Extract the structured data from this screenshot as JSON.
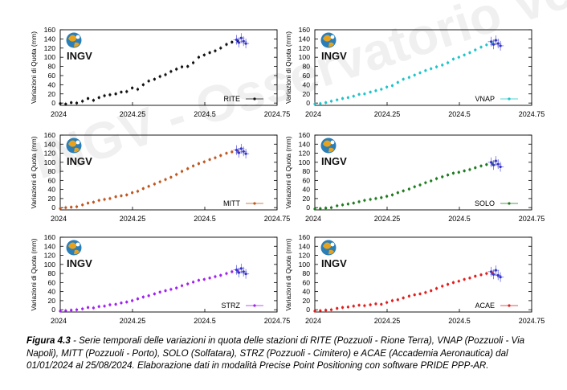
{
  "figure": {
    "caption_label": "Figura 4.3",
    "caption_text": " - Serie temporali delle variazioni in quota delle stazioni di RITE (Pozzuoli - Rione Terra), VNAP (Pozzuoli - Via Napoli), MITT (Pozzuoli - Porto), SOLO (Solfatara), STRZ (Pozzuoli - Cimitero) e ACAE (Accademia Aeronautica) dal 01/01/2024 al 25/08/2024. Elaborazione dati in modalità Precise Point Positioning con software PRIDE PPP-AR.",
    "logo_text": "INGV",
    "watermark_text": "INGV - Osservatorio Vesuviano"
  },
  "chart_data": [
    {
      "type": "scatter",
      "station": "RITE",
      "color": "#111111",
      "ylabel": "Variazioni di Quota (mm)",
      "xlim": [
        2024,
        2024.75
      ],
      "ylim": [
        -5,
        160
      ],
      "xticks": [
        2024,
        2024.25,
        2024.5,
        2024.75
      ],
      "xtick_labels": [
        "2024",
        "2024.25",
        "2024.5",
        "2024.75"
      ],
      "yticks": [
        0,
        20,
        40,
        60,
        80,
        100,
        120,
        140,
        160
      ],
      "legend": "RITE",
      "legend_position": "bottom-right",
      "x": [
        2024.0,
        2024.019,
        2024.038,
        2024.057,
        2024.077,
        2024.096,
        2024.115,
        2024.134,
        2024.153,
        2024.172,
        2024.192,
        2024.211,
        2024.23,
        2024.249,
        2024.268,
        2024.287,
        2024.306,
        2024.326,
        2024.345,
        2024.364,
        2024.383,
        2024.402,
        2024.421,
        2024.441,
        2024.46,
        2024.479,
        2024.498,
        2024.517,
        2024.536,
        2024.555,
        2024.575,
        2024.594,
        2024.613
      ],
      "y": [
        -1,
        -2,
        1,
        0,
        4,
        10,
        6,
        12,
        16,
        18,
        20,
        24,
        25,
        33,
        30,
        40,
        48,
        52,
        58,
        62,
        69,
        74,
        79,
        80,
        88,
        100,
        105,
        110,
        114,
        120,
        128,
        133,
        136
      ],
      "recent_x": [
        2024.61,
        2024.618,
        2024.626,
        2024.634,
        2024.642
      ],
      "recent_y": [
        138,
        132,
        142,
        135,
        130
      ]
    },
    {
      "type": "scatter",
      "station": "VNAP",
      "color": "#1fc4c9",
      "ylabel": "Variazioni di Quota (mm)",
      "xlim": [
        2024,
        2024.75
      ],
      "ylim": [
        -5,
        160
      ],
      "xticks": [
        2024,
        2024.25,
        2024.5,
        2024.75
      ],
      "xtick_labels": [
        "2024",
        "2024.25",
        "2024.5",
        "2024.75"
      ],
      "yticks": [
        0,
        20,
        40,
        60,
        80,
        100,
        120,
        140,
        160
      ],
      "legend": "VNAP",
      "legend_position": "bottom-right",
      "x": [
        2024.0,
        2024.019,
        2024.038,
        2024.057,
        2024.077,
        2024.096,
        2024.115,
        2024.134,
        2024.153,
        2024.172,
        2024.192,
        2024.211,
        2024.23,
        2024.249,
        2024.268,
        2024.287,
        2024.306,
        2024.326,
        2024.345,
        2024.364,
        2024.383,
        2024.402,
        2024.421,
        2024.441,
        2024.46,
        2024.479,
        2024.498,
        2024.517,
        2024.536,
        2024.555,
        2024.575,
        2024.594,
        2024.613
      ],
      "y": [
        -2,
        -1,
        1,
        4,
        7,
        10,
        12,
        15,
        19,
        20,
        24,
        27,
        30,
        35,
        38,
        45,
        52,
        56,
        61,
        66,
        71,
        75,
        79,
        83,
        88,
        96,
        100,
        105,
        110,
        116,
        122,
        127,
        130
      ],
      "recent_x": [
        2024.61,
        2024.618,
        2024.626,
        2024.634,
        2024.642
      ],
      "recent_y": [
        134,
        128,
        137,
        130,
        125
      ]
    },
    {
      "type": "scatter",
      "station": "MITT",
      "color": "#c0561e",
      "ylabel": "Variazioni di Quota (mm)",
      "xlim": [
        2024,
        2024.75
      ],
      "ylim": [
        -5,
        160
      ],
      "xticks": [
        2024,
        2024.25,
        2024.5,
        2024.75
      ],
      "xtick_labels": [
        "2024",
        "2024.25",
        "2024.5",
        "2024.75"
      ],
      "yticks": [
        0,
        20,
        40,
        60,
        80,
        100,
        120,
        140,
        160
      ],
      "legend": "MITT",
      "legend_position": "bottom-right",
      "x": [
        2024.0,
        2024.019,
        2024.038,
        2024.057,
        2024.077,
        2024.096,
        2024.115,
        2024.134,
        2024.153,
        2024.172,
        2024.192,
        2024.211,
        2024.23,
        2024.249,
        2024.268,
        2024.287,
        2024.306,
        2024.326,
        2024.345,
        2024.364,
        2024.383,
        2024.402,
        2024.421,
        2024.441,
        2024.46,
        2024.479,
        2024.498,
        2024.517,
        2024.536,
        2024.555,
        2024.575,
        2024.594,
        2024.613
      ],
      "y": [
        -2,
        0,
        1,
        2,
        6,
        10,
        12,
        16,
        18,
        20,
        24,
        26,
        28,
        33,
        36,
        42,
        47,
        52,
        57,
        62,
        67,
        73,
        80,
        86,
        92,
        97,
        101,
        106,
        110,
        115,
        120,
        123,
        124
      ],
      "recent_x": [
        2024.61,
        2024.618,
        2024.626,
        2024.634,
        2024.642
      ],
      "recent_y": [
        127,
        121,
        130,
        124,
        119
      ]
    },
    {
      "type": "scatter",
      "station": "SOLO",
      "color": "#1e7a1e",
      "ylabel": "Variazioni di Quota (mm)",
      "xlim": [
        2024,
        2024.75
      ],
      "ylim": [
        -5,
        160
      ],
      "xticks": [
        2024,
        2024.25,
        2024.5,
        2024.75
      ],
      "xtick_labels": [
        "2024",
        "2024.25",
        "2024.5",
        "2024.75"
      ],
      "yticks": [
        0,
        20,
        40,
        60,
        80,
        100,
        120,
        140,
        160
      ],
      "legend": "SOLO",
      "legend_position": "bottom-right",
      "x": [
        2024.0,
        2024.019,
        2024.038,
        2024.057,
        2024.077,
        2024.096,
        2024.115,
        2024.134,
        2024.153,
        2024.172,
        2024.192,
        2024.211,
        2024.23,
        2024.249,
        2024.268,
        2024.287,
        2024.306,
        2024.326,
        2024.345,
        2024.364,
        2024.383,
        2024.402,
        2024.421,
        2024.441,
        2024.46,
        2024.479,
        2024.498,
        2024.517,
        2024.536,
        2024.555,
        2024.575,
        2024.594,
        2024.613
      ],
      "y": [
        -3,
        -2,
        -1,
        0,
        4,
        6,
        8,
        10,
        13,
        16,
        18,
        20,
        22,
        25,
        28,
        33,
        37,
        41,
        46,
        50,
        55,
        59,
        64,
        68,
        72,
        76,
        78,
        81,
        84,
        88,
        92,
        95,
        97
      ],
      "recent_x": [
        2024.61,
        2024.618,
        2024.626,
        2024.634,
        2024.642
      ],
      "recent_y": [
        100,
        94,
        103,
        96,
        90
      ]
    },
    {
      "type": "scatter",
      "station": "STRZ",
      "color": "#a020f0",
      "ylabel": "Variazioni di Quota (mm)",
      "xlim": [
        2024,
        2024.75
      ],
      "ylim": [
        -5,
        160
      ],
      "xticks": [
        2024,
        2024.25,
        2024.5,
        2024.75
      ],
      "xtick_labels": [
        "2024",
        "2024.25",
        "2024.5",
        "2024.75"
      ],
      "yticks": [
        0,
        20,
        40,
        60,
        80,
        100,
        120,
        140,
        160
      ],
      "legend": "STRZ",
      "legend_position": "bottom-right",
      "x": [
        2024.0,
        2024.019,
        2024.038,
        2024.057,
        2024.077,
        2024.096,
        2024.115,
        2024.134,
        2024.153,
        2024.172,
        2024.192,
        2024.211,
        2024.23,
        2024.249,
        2024.268,
        2024.287,
        2024.306,
        2024.326,
        2024.345,
        2024.364,
        2024.383,
        2024.402,
        2024.421,
        2024.441,
        2024.46,
        2024.479,
        2024.498,
        2024.517,
        2024.536,
        2024.555,
        2024.575,
        2024.594,
        2024.613
      ],
      "y": [
        -3,
        -2,
        -1,
        0,
        2,
        5,
        4,
        7,
        8,
        11,
        12,
        15,
        17,
        20,
        24,
        28,
        31,
        35,
        39,
        42,
        45,
        48,
        53,
        57,
        61,
        65,
        67,
        70,
        73,
        76,
        80,
        84,
        85
      ],
      "recent_x": [
        2024.61,
        2024.618,
        2024.626,
        2024.634,
        2024.642
      ],
      "recent_y": [
        88,
        82,
        91,
        84,
        79
      ]
    },
    {
      "type": "scatter",
      "station": "ACAE",
      "color": "#e01e1e",
      "ylabel": "Variazioni di Quota (mm)",
      "xlim": [
        2024,
        2024.75
      ],
      "ylim": [
        -5,
        160
      ],
      "xticks": [
        2024,
        2024.25,
        2024.5,
        2024.75
      ],
      "xtick_labels": [
        "2024",
        "2024.25",
        "2024.5",
        "2024.75"
      ],
      "yticks": [
        0,
        20,
        40,
        60,
        80,
        100,
        120,
        140,
        160
      ],
      "legend": "ACAE",
      "legend_position": "bottom-right",
      "x": [
        2024.0,
        2024.019,
        2024.038,
        2024.057,
        2024.077,
        2024.096,
        2024.115,
        2024.134,
        2024.153,
        2024.172,
        2024.192,
        2024.211,
        2024.23,
        2024.249,
        2024.268,
        2024.287,
        2024.306,
        2024.326,
        2024.345,
        2024.364,
        2024.383,
        2024.402,
        2024.421,
        2024.441,
        2024.46,
        2024.479,
        2024.498,
        2024.517,
        2024.536,
        2024.555,
        2024.575,
        2024.594,
        2024.613
      ],
      "y": [
        -3,
        -2,
        -1,
        0,
        3,
        5,
        6,
        8,
        10,
        9,
        11,
        13,
        12,
        16,
        20,
        22,
        26,
        30,
        33,
        35,
        38,
        42,
        47,
        52,
        56,
        60,
        63,
        67,
        70,
        74,
        77,
        80,
        81
      ],
      "recent_x": [
        2024.61,
        2024.618,
        2024.626,
        2024.634,
        2024.642
      ],
      "recent_y": [
        84,
        78,
        87,
        76,
        72
      ]
    }
  ]
}
